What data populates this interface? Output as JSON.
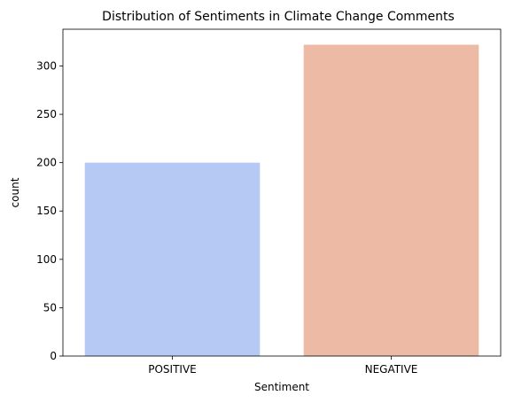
{
  "chart_data": {
    "type": "bar",
    "title": "Distribution of Sentiments in Climate Change Comments",
    "xlabel": "Sentiment",
    "ylabel": "count",
    "categories": [
      "POSITIVE",
      "NEGATIVE"
    ],
    "values": [
      200,
      322
    ],
    "colors": [
      "#b5c9f4",
      "#edbba5"
    ],
    "ylim": [
      0,
      338
    ],
    "yticks": [
      0,
      50,
      100,
      150,
      200,
      250,
      300
    ],
    "grid": false,
    "legend": "none"
  }
}
